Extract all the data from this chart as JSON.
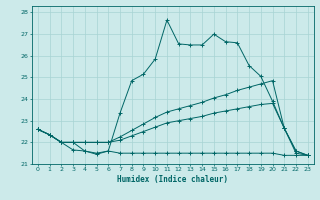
{
  "xlabel": "Humidex (Indice chaleur)",
  "x": [
    0,
    1,
    2,
    3,
    4,
    5,
    6,
    7,
    8,
    9,
    10,
    11,
    12,
    13,
    14,
    15,
    16,
    17,
    18,
    19,
    20,
    21,
    22,
    23
  ],
  "line1": [
    22.6,
    22.35,
    22.0,
    21.65,
    21.6,
    21.5,
    21.6,
    21.5,
    21.5,
    21.5,
    21.5,
    21.5,
    21.5,
    21.5,
    21.5,
    21.5,
    21.5,
    21.5,
    21.5,
    21.5,
    21.5,
    21.4,
    21.4,
    21.4
  ],
  "line2": [
    22.6,
    22.35,
    22.0,
    22.0,
    22.0,
    22.0,
    22.0,
    22.1,
    22.3,
    22.5,
    22.7,
    22.9,
    23.0,
    23.1,
    23.2,
    23.35,
    23.45,
    23.55,
    23.65,
    23.75,
    23.8,
    22.65,
    21.5,
    21.4
  ],
  "line3": [
    22.6,
    22.35,
    22.0,
    22.0,
    22.0,
    22.0,
    22.0,
    22.25,
    22.55,
    22.85,
    23.15,
    23.4,
    23.55,
    23.7,
    23.85,
    24.05,
    24.2,
    24.4,
    24.55,
    24.7,
    24.85,
    22.65,
    21.6,
    21.4
  ],
  "line4": [
    22.6,
    22.35,
    22.0,
    22.0,
    21.6,
    21.45,
    21.6,
    23.35,
    24.85,
    25.15,
    25.85,
    27.65,
    26.55,
    26.5,
    26.5,
    27.0,
    26.65,
    26.6,
    25.55,
    25.05,
    23.9,
    22.65,
    21.6,
    21.4
  ],
  "background_color": "#cceaea",
  "grid_color": "#a8d4d4",
  "line_color": "#006666",
  "ylim": [
    21.0,
    28.3
  ],
  "yticks": [
    21,
    22,
    23,
    24,
    25,
    26,
    27,
    28
  ],
  "xticks": [
    0,
    1,
    2,
    3,
    4,
    5,
    6,
    7,
    8,
    9,
    10,
    11,
    12,
    13,
    14,
    15,
    16,
    17,
    18,
    19,
    20,
    21,
    22,
    23
  ]
}
